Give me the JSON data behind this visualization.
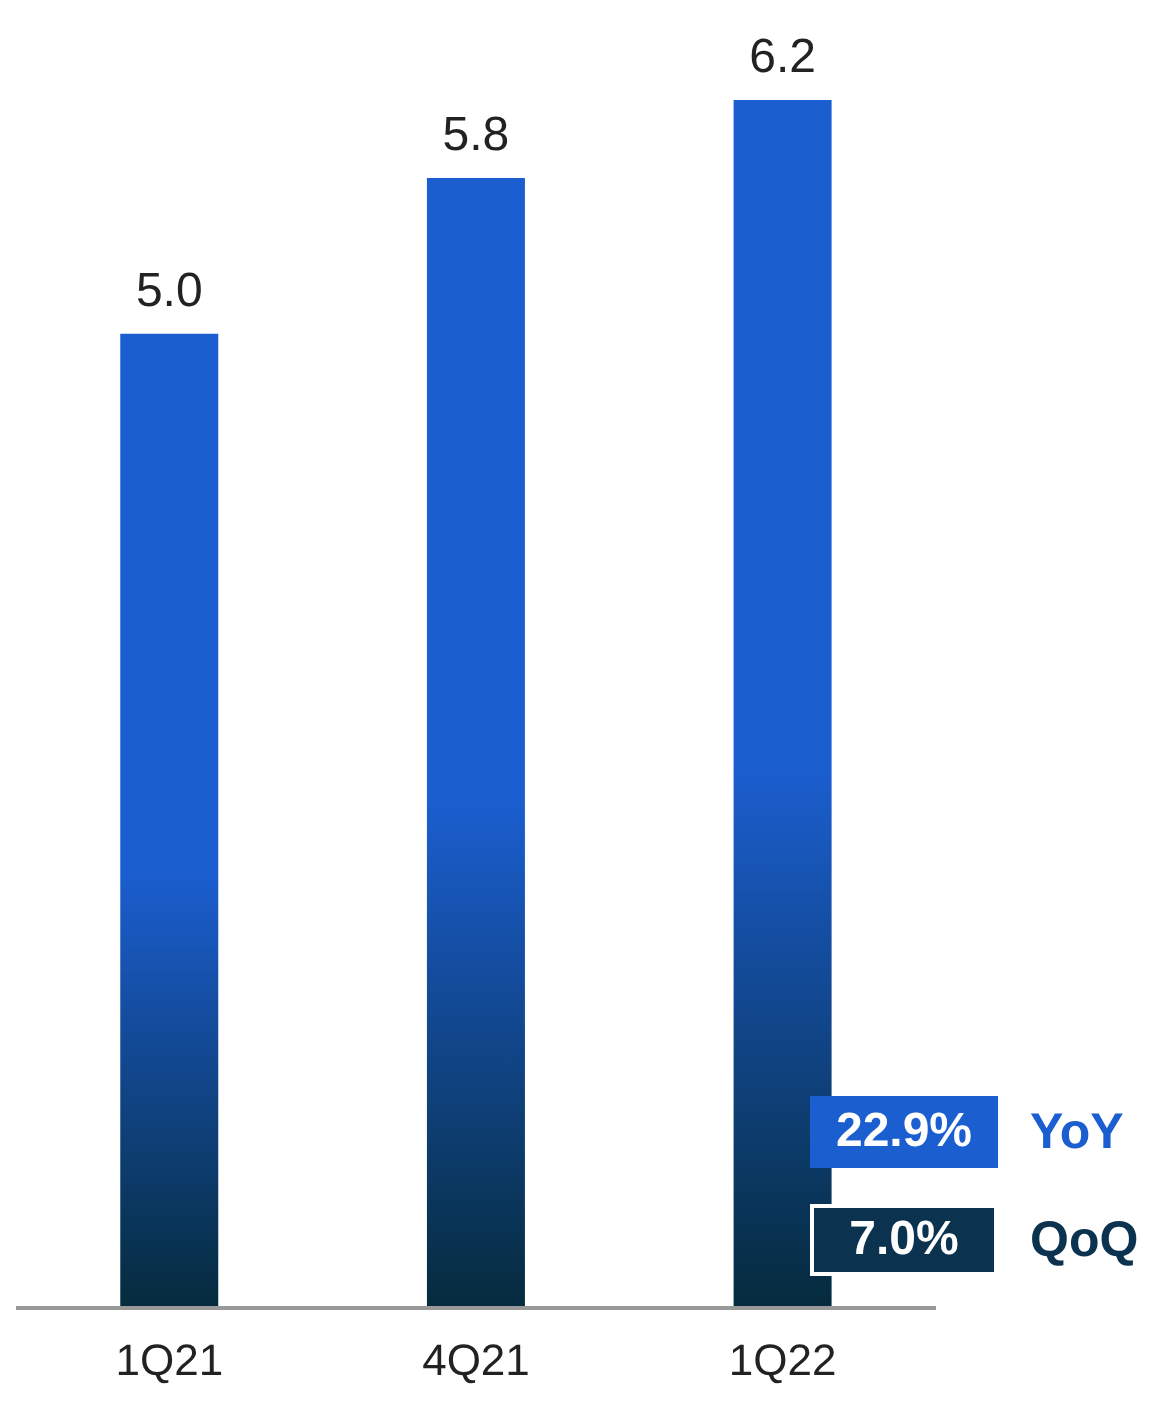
{
  "chart_data": {
    "type": "bar",
    "categories": [
      "1Q21",
      "4Q21",
      "1Q22"
    ],
    "values": [
      5.0,
      5.8,
      6.2
    ],
    "value_labels": [
      "5.0",
      "5.8",
      "6.2"
    ],
    "color": "#1b5ed0",
    "annotations": [
      "22.9% YoY",
      "7.0% QoQ"
    ]
  }
}
